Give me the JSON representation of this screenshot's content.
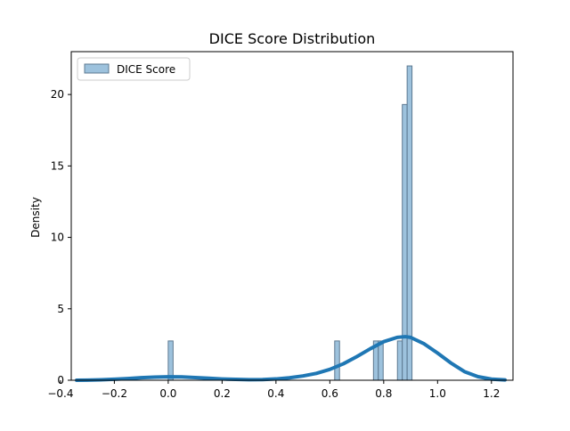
{
  "chart_data": {
    "type": "bar",
    "title": "DICE Score Distribution",
    "xlabel": "",
    "ylabel": "Density",
    "xlim": [
      -0.36,
      1.28
    ],
    "ylim": [
      0,
      23
    ],
    "x_ticks": [
      -0.4,
      -0.2,
      0.0,
      0.2,
      0.4,
      0.6,
      0.8,
      1.0,
      1.2
    ],
    "x_tick_labels": [
      "−0.4",
      "−0.2",
      "0.0",
      "0.2",
      "0.4",
      "0.6",
      "0.8",
      "1.0",
      "1.2"
    ],
    "y_ticks": [
      0,
      5,
      10,
      15,
      20
    ],
    "y_tick_labels": [
      "0",
      "5",
      "10",
      "15",
      "20"
    ],
    "legend": {
      "placement": "top-left",
      "entries": [
        "DICE Score"
      ]
    },
    "grid": false,
    "series": [
      {
        "name": "DICE Score",
        "kind": "histogram",
        "color": "#9dc2dd",
        "edge_color": "#5c7890",
        "bins": [
          {
            "x0": 0.0,
            "x1": 0.018,
            "value": 2.75
          },
          {
            "x0": 0.618,
            "x1": 0.636,
            "value": 2.75
          },
          {
            "x0": 0.762,
            "x1": 0.78,
            "value": 2.75
          },
          {
            "x0": 0.78,
            "x1": 0.798,
            "value": 2.75
          },
          {
            "x0": 0.851,
            "x1": 0.869,
            "value": 2.75
          },
          {
            "x0": 0.869,
            "x1": 0.887,
            "value": 19.3
          },
          {
            "x0": 0.887,
            "x1": 0.905,
            "value": 22.0
          }
        ]
      },
      {
        "kind": "kde",
        "color": "#1f77b4",
        "x": [
          -0.34,
          -0.3,
          -0.25,
          -0.2,
          -0.15,
          -0.1,
          -0.05,
          0.0,
          0.05,
          0.1,
          0.15,
          0.2,
          0.25,
          0.3,
          0.35,
          0.4,
          0.45,
          0.5,
          0.55,
          0.6,
          0.65,
          0.7,
          0.75,
          0.8,
          0.85,
          0.88,
          0.9,
          0.95,
          1.0,
          1.05,
          1.1,
          1.15,
          1.2,
          1.25
        ],
        "y": [
          0.0,
          0.01,
          0.03,
          0.07,
          0.12,
          0.18,
          0.22,
          0.24,
          0.23,
          0.19,
          0.14,
          0.09,
          0.06,
          0.04,
          0.05,
          0.09,
          0.17,
          0.3,
          0.48,
          0.76,
          1.15,
          1.65,
          2.2,
          2.7,
          3.0,
          3.05,
          3.0,
          2.55,
          1.9,
          1.2,
          0.6,
          0.25,
          0.08,
          0.02
        ]
      }
    ]
  }
}
